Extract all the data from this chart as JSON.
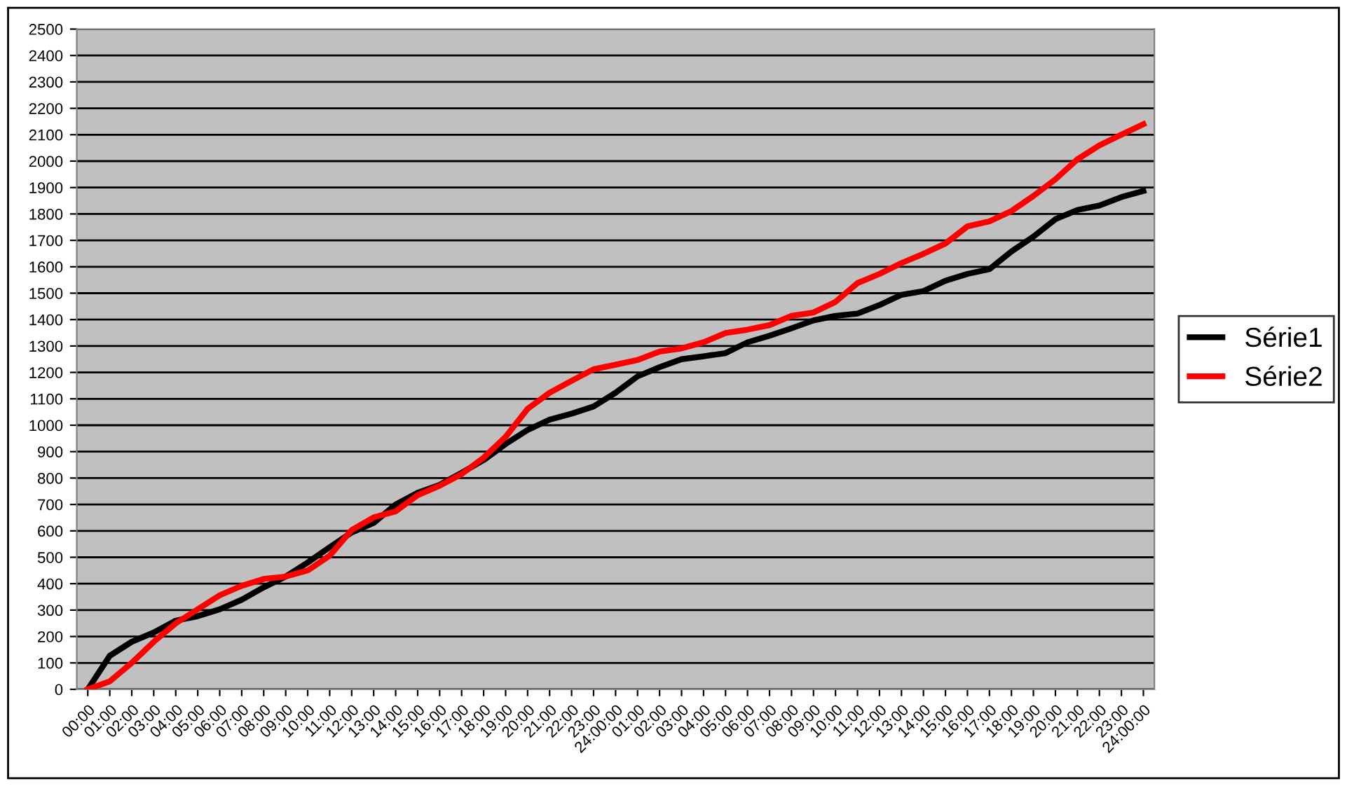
{
  "chart_data": {
    "type": "line",
    "categories": [
      "00:00",
      "01:00",
      "02:00",
      "03:00",
      "04:00",
      "05:00",
      "06:00",
      "07:00",
      "08:00",
      "09:00",
      "10:00",
      "11:00",
      "12:00",
      "13:00",
      "14:00",
      "15:00",
      "16:00",
      "17:00",
      "18:00",
      "19:00",
      "20:00",
      "21:00",
      "22:00",
      "23:00",
      "24:00:00",
      "01:00",
      "02:00",
      "03:00",
      "04:00",
      "05:00",
      "06:00",
      "07:00",
      "08:00",
      "09:00",
      "10:00",
      "11:00",
      "12:00",
      "13:00",
      "14:00",
      "15:00",
      "16:00",
      "17:00",
      "18:00",
      "19:00",
      "20:00",
      "21:00",
      "22:00",
      "23:00",
      "24:00:00"
    ],
    "series": [
      {
        "name": "Série1",
        "color": "#000000",
        "values": [
          0,
          127,
          180,
          215,
          260,
          277,
          303,
          339,
          386,
          427,
          480,
          538,
          594,
          630,
          700,
          744,
          774,
          820,
          868,
          929,
          982,
          1021,
          1044,
          1071,
          1123,
          1185,
          1220,
          1250,
          1261,
          1273,
          1314,
          1339,
          1367,
          1397,
          1414,
          1423,
          1455,
          1494,
          1508,
          1547,
          1573,
          1591,
          1658,
          1714,
          1780,
          1815,
          1832,
          1864,
          1887
        ]
      },
      {
        "name": "Série2",
        "color": "#ff0000",
        "values": [
          0,
          30,
          100,
          180,
          250,
          303,
          356,
          392,
          418,
          427,
          450,
          506,
          603,
          651,
          674,
          735,
          771,
          815,
          877,
          956,
          1062,
          1123,
          1168,
          1212,
          1229,
          1247,
          1279,
          1291,
          1314,
          1349,
          1362,
          1379,
          1414,
          1427,
          1467,
          1538,
          1573,
          1614,
          1649,
          1688,
          1753,
          1772,
          1811,
          1868,
          1931,
          2007,
          2060,
          2100,
          2140
        ]
      }
    ],
    "ylim": [
      0,
      2500
    ],
    "yticks": [
      0,
      100,
      200,
      300,
      400,
      500,
      600,
      700,
      800,
      900,
      1000,
      1100,
      1200,
      1300,
      1400,
      1500,
      1600,
      1700,
      1800,
      1900,
      2000,
      2100,
      2200,
      2300,
      2400,
      2500
    ],
    "grid": "y",
    "legend": "right",
    "marker": "none",
    "line_style": "solid"
  }
}
